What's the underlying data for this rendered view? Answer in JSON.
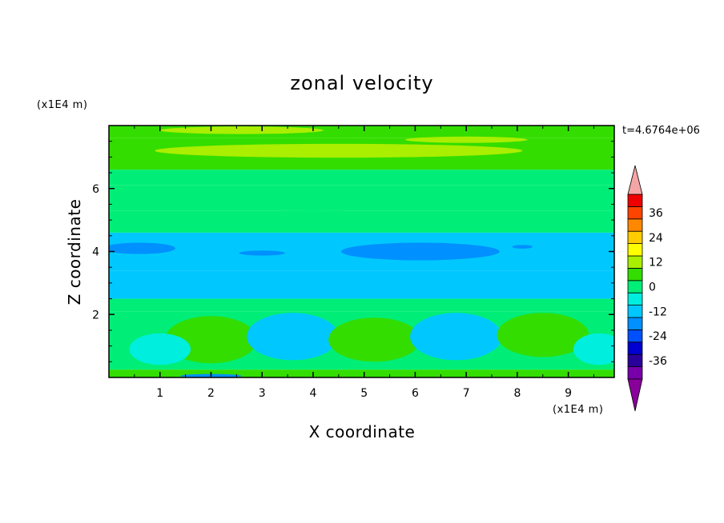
{
  "chart_data": {
    "type": "heatmap",
    "title": "zonal velocity",
    "xlabel": "X coordinate",
    "ylabel": "Z coordinate",
    "x_multiplier": "(x1E4 m)",
    "y_multiplier": "(x1E4 m)",
    "time_label": "t=4.6764e+06",
    "xlim": [
      0,
      9.9
    ],
    "ylim": [
      0,
      8
    ],
    "x_ticks": [
      1,
      2,
      3,
      4,
      5,
      6,
      7,
      8,
      9
    ],
    "y_ticks": [
      2,
      4,
      6
    ],
    "colorbar": {
      "levels": [
        -42,
        -36,
        -30,
        -24,
        -18,
        -12,
        -6,
        0,
        6,
        12,
        18,
        24,
        30,
        36,
        42
      ],
      "labeled_levels": [
        -36,
        -24,
        -12,
        0,
        12,
        24,
        36
      ],
      "colors": [
        "#7700aa",
        "#2a009a",
        "#0000d0",
        "#0050ff",
        "#0090ff",
        "#00c8ff",
        "#00eedd",
        "#00ee77",
        "#33dd00",
        "#aaee00",
        "#ffff00",
        "#ffcc00",
        "#ff8800",
        "#ff4400",
        "#ee0000"
      ],
      "extend_low_color": "#880099",
      "extend_high_color": "#f4a6a6"
    },
    "bands": [
      {
        "z": [
          0.0,
          0.25
        ],
        "value": 8
      },
      {
        "z": [
          0.25,
          2.1
        ],
        "value": 3
      },
      {
        "z": [
          2.1,
          2.5
        ],
        "value": 4
      },
      {
        "z": [
          2.5,
          3.4
        ],
        "value": -8
      },
      {
        "z": [
          3.4,
          4.6
        ],
        "value": -11
      },
      {
        "z": [
          4.6,
          5.3
        ],
        "value": 0
      },
      {
        "z": [
          5.3,
          6.1
        ],
        "value": 1
      },
      {
        "z": [
          6.1,
          6.6
        ],
        "value": 2
      },
      {
        "z": [
          6.6,
          7.6
        ],
        "value": 9
      },
      {
        "z": [
          7.6,
          8.0
        ],
        "value": 6
      }
    ],
    "cells": [
      {
        "x": 2.0,
        "z": 1.2,
        "rx": 0.9,
        "rz": 0.75,
        "value": 10
      },
      {
        "x": 3.6,
        "z": 1.3,
        "rx": 0.9,
        "rz": 0.75,
        "value": -7
      },
      {
        "x": 5.2,
        "z": 1.2,
        "rx": 0.9,
        "rz": 0.7,
        "value": 9
      },
      {
        "x": 6.8,
        "z": 1.3,
        "rx": 0.9,
        "rz": 0.75,
        "value": -7
      },
      {
        "x": 8.5,
        "z": 1.35,
        "rx": 0.9,
        "rz": 0.7,
        "value": 10
      },
      {
        "x": 1.0,
        "z": 0.9,
        "rx": 0.6,
        "rz": 0.5,
        "value": -4
      },
      {
        "x": 9.6,
        "z": 0.9,
        "rx": 0.5,
        "rz": 0.5,
        "value": -4
      }
    ],
    "patches": [
      {
        "x": 0.6,
        "z": 4.1,
        "rx": 0.7,
        "rz": 0.18,
        "value": -16
      },
      {
        "x": 3.0,
        "z": 3.95,
        "rx": 0.45,
        "rz": 0.08,
        "value": -16
      },
      {
        "x": 6.1,
        "z": 4.0,
        "rx": 1.55,
        "rz": 0.28,
        "value": -16
      },
      {
        "x": 8.1,
        "z": 4.15,
        "rx": 0.2,
        "rz": 0.06,
        "value": -16
      },
      {
        "x": 4.5,
        "z": 7.2,
        "rx": 3.6,
        "rz": 0.22,
        "value": 14
      },
      {
        "x": 7.0,
        "z": 7.55,
        "rx": 1.2,
        "rz": 0.1,
        "value": 13
      },
      {
        "x": 2.6,
        "z": 7.85,
        "rx": 1.6,
        "rz": 0.12,
        "value": 12
      },
      {
        "x": 4.0,
        "z": 5.6,
        "rx": 3.0,
        "rz": 0.3,
        "value": 4
      },
      {
        "x": 2.0,
        "z": 0.05,
        "rx": 0.6,
        "rz": 0.06,
        "value": -14
      }
    ]
  }
}
